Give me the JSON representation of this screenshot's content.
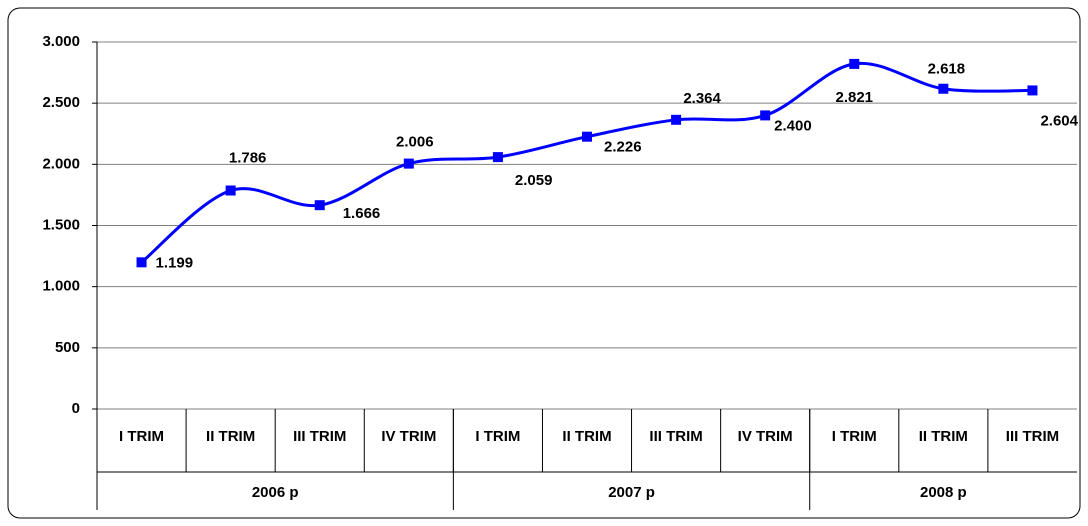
{
  "chart_data": {
    "type": "line",
    "categories": [
      "I TRIM",
      "II TRIM",
      "III TRIM",
      "IV TRIM",
      "I TRIM",
      "II TRIM",
      "III TRIM",
      "IV TRIM",
      "I TRIM",
      "II TRIM",
      "III TRIM"
    ],
    "groups": [
      {
        "label": "2006 p",
        "count": 4
      },
      {
        "label": "2007 p",
        "count": 4
      },
      {
        "label": "2008 p",
        "count": 3
      }
    ],
    "series": [
      {
        "color": "#0000ff",
        "values": [
          1199,
          1786,
          1666,
          2006,
          2059,
          2226,
          2364,
          2400,
          2821,
          2618,
          2604
        ],
        "value_labels": [
          "1.199",
          "1.786",
          "1.666",
          "2.006",
          "2.059",
          "2.226",
          "2.364",
          "2.400",
          "2.821",
          "2.618",
          "2.604"
        ]
      }
    ],
    "ylim": [
      0,
      3000
    ],
    "yticks": [
      0,
      500,
      {
        "value": 1000,
        "label": "1.000"
      },
      {
        "value": 1500,
        "label": "1.500"
      },
      {
        "value": 2000,
        "label": "2.000"
      },
      {
        "value": 2500,
        "label": "2.500"
      },
      {
        "value": 3000,
        "label": "3.000"
      }
    ],
    "grid": true
  }
}
